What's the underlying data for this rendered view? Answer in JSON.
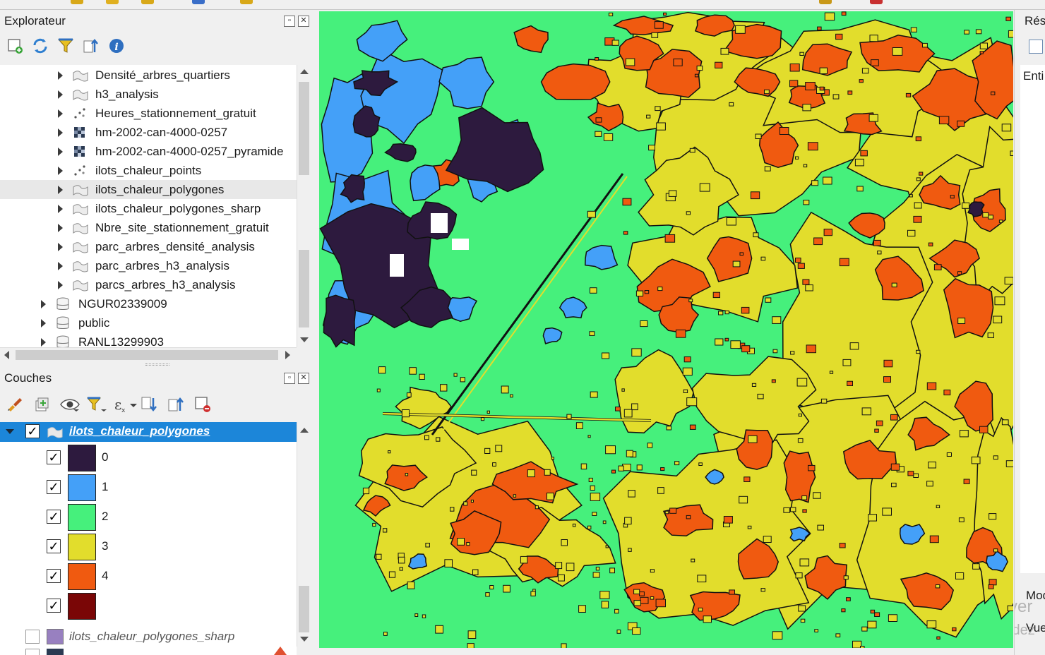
{
  "explorer": {
    "title": "Explorateur",
    "items": [
      {
        "label": "Densité_arbres_quartiers",
        "icon": "polygon-layer-icon"
      },
      {
        "label": "h3_analysis",
        "icon": "polygon-layer-icon"
      },
      {
        "label": "Heures_stationnement_gratuit",
        "icon": "point-layer-icon"
      },
      {
        "label": "hm-2002-can-4000-0257",
        "icon": "raster-layer-icon"
      },
      {
        "label": "hm-2002-can-4000-0257_pyramide",
        "icon": "raster-layer-icon"
      },
      {
        "label": "ilots_chaleur_points",
        "icon": "point-layer-icon"
      },
      {
        "label": "ilots_chaleur_polygones",
        "icon": "polygon-layer-icon"
      },
      {
        "label": "ilots_chaleur_polygones_sharp",
        "icon": "polygon-layer-icon"
      },
      {
        "label": "Nbre_site_stationnement_gratuit",
        "icon": "polygon-layer-icon"
      },
      {
        "label": "parc_arbres_densité_analysis",
        "icon": "polygon-layer-icon"
      },
      {
        "label": "parc_arbres_h3_analysis",
        "icon": "polygon-layer-icon"
      },
      {
        "label": "parcs_arbres_h3_analysis",
        "icon": "polygon-layer-icon"
      }
    ],
    "schemas": [
      {
        "label": "NGUR02339009",
        "icon": "database-icon"
      },
      {
        "label": "public",
        "icon": "database-icon"
      },
      {
        "label": "RANL13299903",
        "icon": "database-icon"
      }
    ]
  },
  "layers": {
    "title": "Couches",
    "active_layer": "ilots_chaleur_polygones",
    "classes": [
      {
        "label": "0",
        "color": "#2d1a3e",
        "checked": true
      },
      {
        "label": "1",
        "color": "#44a0f8",
        "checked": true
      },
      {
        "label": "2",
        "color": "#46f07c",
        "checked": true
      },
      {
        "label": "3",
        "color": "#e2dd2c",
        "checked": true
      },
      {
        "label": "4",
        "color": "#f05a10",
        "checked": true
      },
      {
        "label": "",
        "color": "#7a0606",
        "checked": true
      }
    ],
    "other_layer": {
      "label": "ilots_chaleur_polygones_sharp",
      "color": "#9880c0",
      "checked": false
    }
  },
  "right_panel": {
    "title_fragment": "Résu",
    "entity_fragment": "Enti",
    "mode_fragment": "Mod",
    "view_fragment": "Vue"
  },
  "watermark": {
    "line1": "Activer",
    "line2": "Accédez"
  },
  "map_colors": {
    "class0": "#2d1a3e",
    "class1": "#44a0f8",
    "class2": "#46f07c",
    "class3": "#e2dd2c",
    "class4": "#f05a10"
  }
}
